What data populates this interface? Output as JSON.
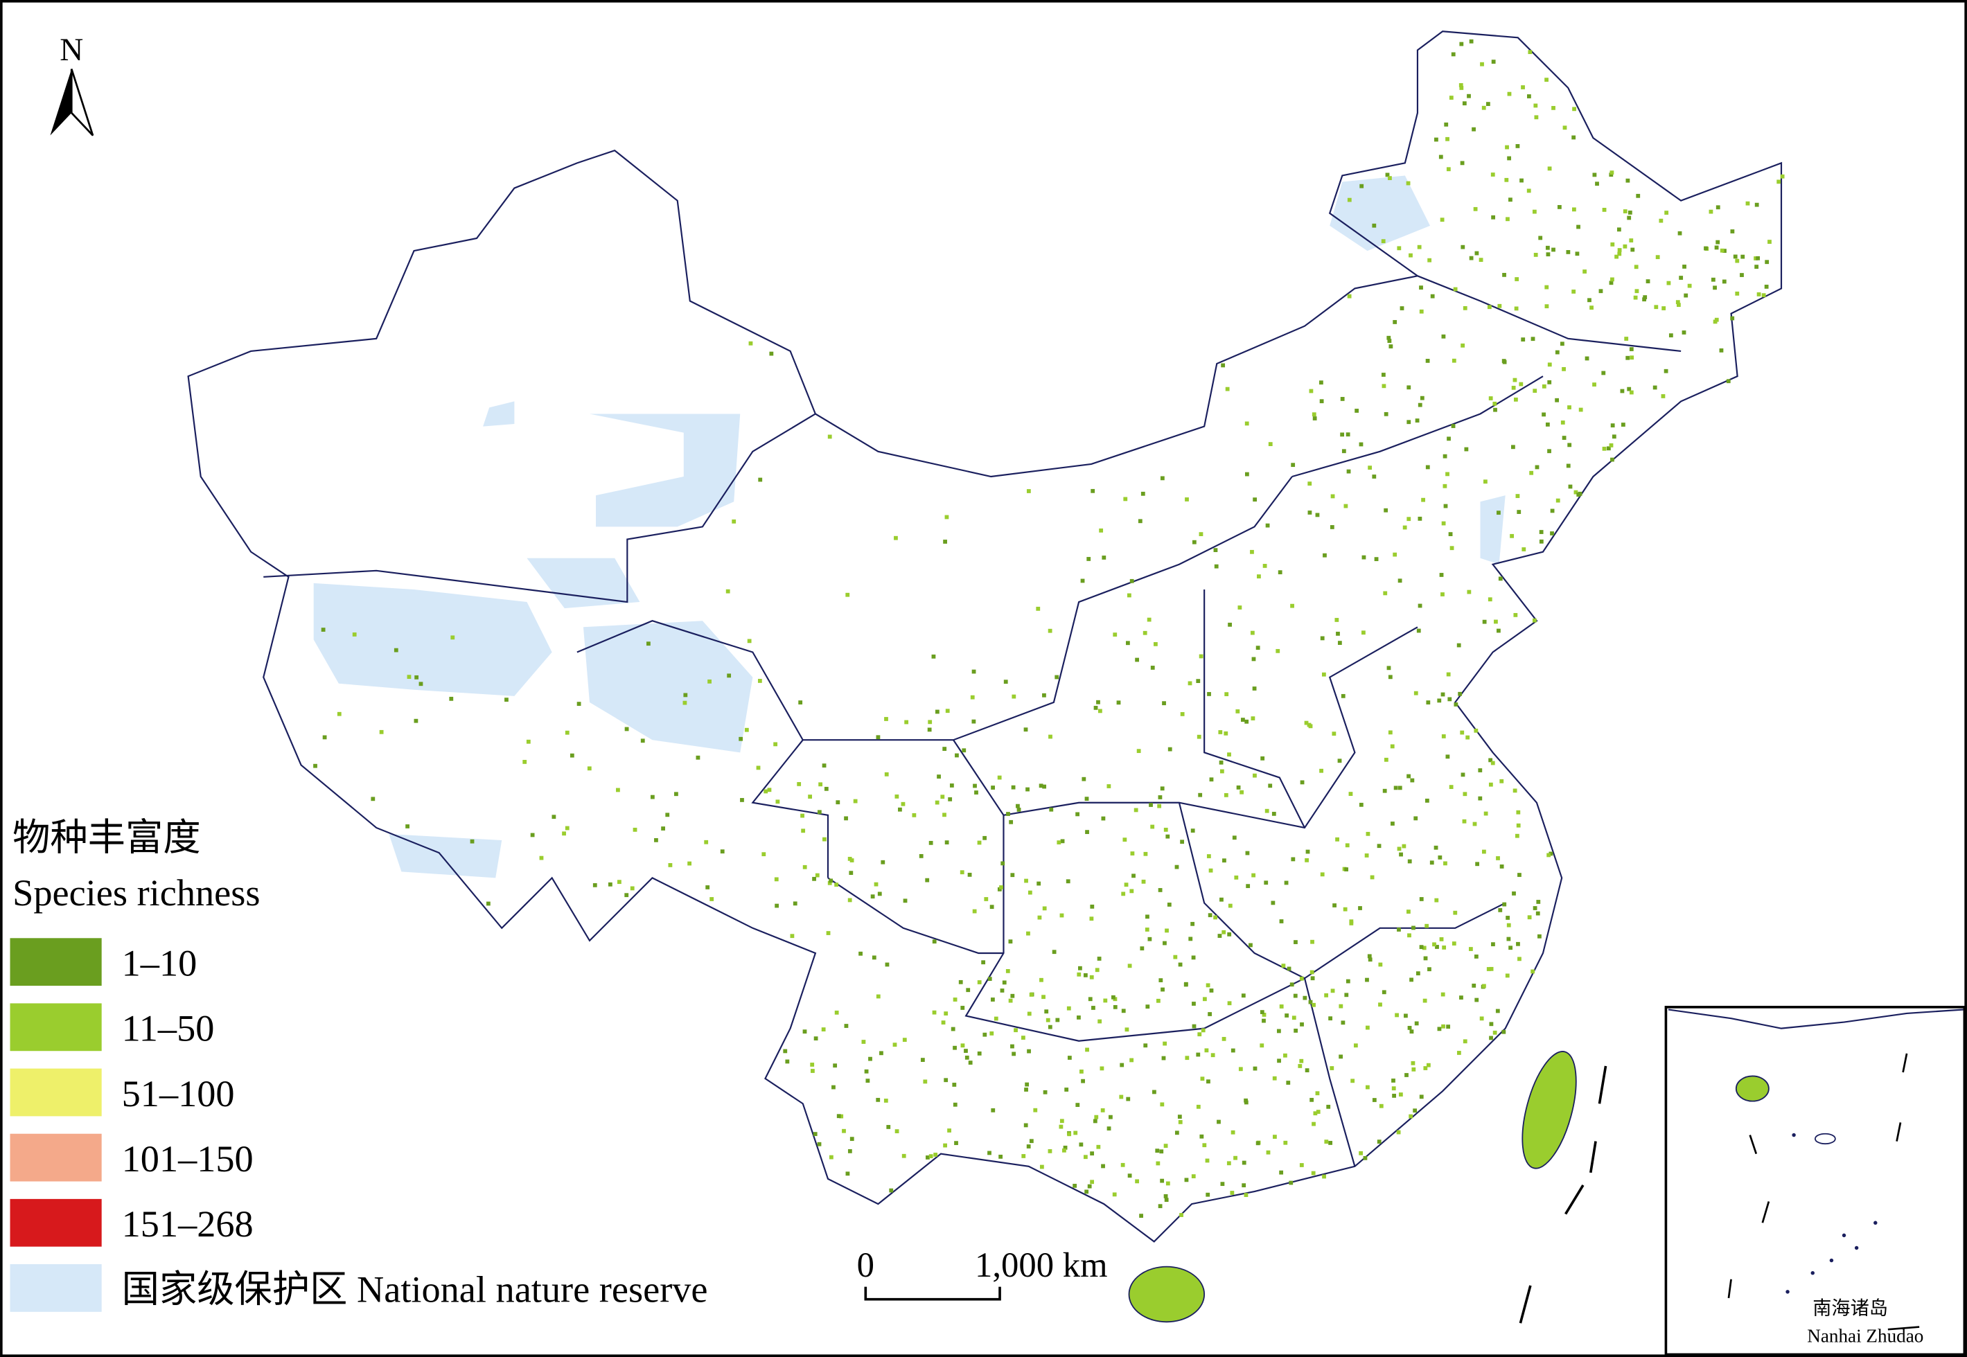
{
  "map": {
    "north": "N",
    "legend": {
      "title_zh": "物种丰富度",
      "title_en": "Species richness",
      "items": [
        {
          "label": "1–10",
          "color": "#6a9e1f"
        },
        {
          "label": "11–50",
          "color": "#9acd2e"
        },
        {
          "label": "51–100",
          "color": "#eef06a"
        },
        {
          "label": "101–150",
          "color": "#f4a98a"
        },
        {
          "label": "151–268",
          "color": "#d7191c"
        }
      ],
      "reserve": {
        "label": "国家级保护区 National nature reserve",
        "color": "#d6e8f8"
      }
    },
    "scale_bar": {
      "start": "0",
      "end": "1,000 km"
    },
    "inset": {
      "label_zh": "南海诸岛",
      "label_en": "Nanhai Zhudao"
    }
  }
}
